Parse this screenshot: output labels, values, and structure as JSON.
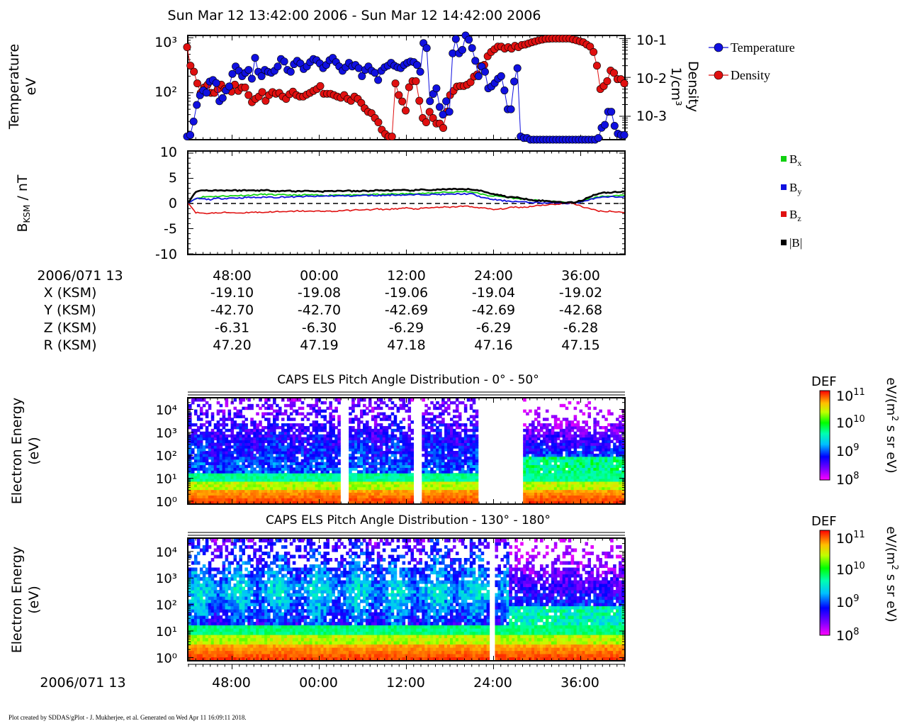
{
  "figure_title": "Sun Mar 12 13:42:00 2006 - Sun Mar 12 14:42:00 2006",
  "colors": {
    "temperature": "#1010e0",
    "density": "#e01010",
    "bx": "#10d010",
    "by": "#1010e0",
    "bz": "#e01010",
    "btotal": "#000000"
  },
  "footer_credit": "Plot created by SDDAS/gPlot - J. Mukherjee, et al.  Generated on Wed Apr 11 16:09:11 2018.",
  "ephemeris": {
    "date_label": "2006/071 13",
    "rows": [
      {
        "label": "X (KSM)",
        "values": [
          "-19.10",
          "-19.08",
          "-19.06",
          "-19.04",
          "-19.02"
        ]
      },
      {
        "label": "Y (KSM)",
        "values": [
          "-42.70",
          "-42.70",
          "-42.69",
          "-42.69",
          "-42.68"
        ]
      },
      {
        "label": "Z (KSM)",
        "values": [
          "-6.31",
          "-6.30",
          "-6.29",
          "-6.29",
          "-6.28"
        ]
      },
      {
        "label": "R (KSM)",
        "values": [
          "47.20",
          "47.19",
          "47.18",
          "47.16",
          "47.15"
        ]
      }
    ]
  },
  "bottom_date_label": "2006/071 13",
  "chart_data": [
    {
      "type": "line",
      "id": "plasma",
      "ylabel": "Temperature\neV",
      "ylabel_right": "Density\n1/cm³",
      "y_scale": "log",
      "ylim": [
        14,
        1100
      ],
      "y_ticks": [
        "10³",
        "10²"
      ],
      "y_right_scale": "log",
      "y_right_lim": [
        0.00025,
        0.12
      ],
      "y_right_ticks": [
        "10-1",
        "10-2",
        "10-3"
      ],
      "x_minutes_after_13_42": [
        0,
        60
      ],
      "x_ticks": [
        "48:00",
        "00:00",
        "12:00",
        "24:00",
        "36:00"
      ],
      "legend_position": "right",
      "series": [
        {
          "name": "Temperature",
          "axis": "left",
          "values": [
            16,
            17,
            30,
            60,
            90,
            110,
            100,
            160,
            170,
            150,
            70,
            80,
            110,
            130,
            220,
            300,
            250,
            200,
            230,
            260,
            180,
            430,
            240,
            200,
            260,
            240,
            230,
            250,
            300,
            410,
            370,
            260,
            240,
            330,
            380,
            340,
            270,
            300,
            360,
            410,
            390,
            340,
            280,
            320,
            390,
            430,
            360,
            300,
            250,
            290,
            350,
            300,
            320,
            280,
            200,
            260,
            300,
            250,
            230,
            170,
            250,
            290,
            310,
            350,
            310,
            290,
            280,
            320,
            350,
            370,
            360,
            320,
            240,
            800,
            650,
            70,
            95,
            120,
            55,
            40,
            70,
            45,
            520,
            950,
            520,
            600,
            1100,
            920,
            650,
            380,
            200,
            300,
            240,
            120,
            130,
            150,
            180,
            200,
            110,
            50,
            50,
            160,
            280,
            16,
            15,
            15,
            14,
            14,
            14,
            13,
            13,
            13,
            13,
            13,
            13,
            13,
            13,
            13,
            13,
            13,
            13,
            13,
            13,
            13,
            13,
            13,
            14,
            15,
            23,
            26,
            45,
            45,
            25,
            18,
            17,
            17
          ]
        },
        {
          "name": "Density",
          "axis": "right",
          "values": [
            0.06,
            0.02,
            0.014,
            0.007,
            0.004,
            0.0055,
            0.0065,
            0.004,
            0.004,
            0.005,
            0.0065,
            0.005,
            0.0048,
            0.0043,
            0.0065,
            0.0045,
            0.0055,
            0.0055,
            0.0035,
            0.0023,
            0.0028,
            0.0032,
            0.0042,
            0.0025,
            0.0035,
            0.0042,
            0.0038,
            0.004,
            0.0032,
            0.0028,
            0.0037,
            0.0043,
            0.0035,
            0.0032,
            0.0032,
            0.0036,
            0.004,
            0.0045,
            0.005,
            0.006,
            0.0038,
            0.0038,
            0.0038,
            0.0035,
            0.0032,
            0.003,
            0.0035,
            0.0028,
            0.0025,
            0.0032,
            0.0028,
            0.0022,
            0.0016,
            0.0013,
            0.0012,
            0.0009,
            0.0007,
            0.00045,
            0.00035,
            0.0003,
            0.0003,
            0.007,
            0.0035,
            0.0024,
            0.0014,
            0.0056,
            0.008,
            0.008,
            0.0025,
            0.0009,
            0.0007,
            0.0013,
            0.0009,
            0.00065,
            0.00065,
            0.0005,
            0.0013,
            0.0035,
            0.0045,
            0.0058,
            0.006,
            0.006,
            0.0065,
            0.0075,
            0.0105,
            0.012,
            0.0195,
            0.021,
            0.035,
            0.045,
            0.053,
            0.062,
            0.062,
            0.055,
            0.06,
            0.055,
            0.065,
            0.06,
            0.068,
            0.07,
            0.075,
            0.08,
            0.085,
            0.09,
            0.094,
            0.098,
            0.099,
            0.1,
            0.1,
            0.1,
            0.1,
            0.1,
            0.1,
            0.095,
            0.09,
            0.085,
            0.08,
            0.07,
            0.062,
            0.045,
            0.02,
            0.005,
            0.006,
            0.008,
            0.015,
            0.013,
            0.009,
            0.009,
            0.007
          ]
        }
      ]
    },
    {
      "type": "line",
      "id": "magnetic-field",
      "ylabel": "BKSM / nT",
      "ylim": [
        -10,
        10
      ],
      "y_ticks": [
        "10",
        "5",
        "0",
        "-5",
        "-10"
      ],
      "zero_line": "dashed",
      "x_minutes_after_13_42": [
        0,
        60
      ],
      "legend_position": "right",
      "series": [
        {
          "name": "Bx",
          "values": [
            0.1,
            1.0,
            1.3,
            1.4,
            1.4,
            1.5,
            1.5,
            1.6,
            1.6,
            1.7,
            1.8,
            1.8,
            1.7,
            1.7,
            1.7,
            1.6,
            1.7,
            1.7,
            1.6,
            1.6,
            1.7,
            1.7,
            1.7,
            1.6,
            1.7,
            1.8,
            1.8,
            1.8,
            1.9,
            1.9,
            1.9,
            2.0,
            2.0,
            2.0,
            2.1,
            2.3,
            2.2,
            2.3,
            2.4,
            2.3,
            2.0,
            1.6,
            1.5,
            1.4,
            1.2,
            1.0,
            0.9,
            0.7,
            0.6,
            0.5,
            0.4,
            0.3,
            0.2,
            0.2,
            0.3,
            0.8,
            1.2,
            1.4,
            1.5,
            1.5,
            1.6
          ]
        },
        {
          "name": "By",
          "values": [
            0.1,
            1.0,
            0.9,
            0.8,
            1.0,
            1.0,
            1.1,
            1.1,
            1.2,
            1.2,
            1.2,
            1.3,
            1.2,
            1.3,
            1.3,
            1.3,
            1.4,
            1.4,
            1.4,
            1.5,
            1.5,
            1.5,
            1.5,
            1.5,
            1.6,
            1.6,
            1.6,
            1.6,
            1.7,
            1.7,
            1.7,
            1.7,
            1.8,
            1.8,
            1.8,
            1.8,
            1.8,
            1.9,
            1.9,
            1.9,
            1.4,
            1.0,
            0.8,
            0.6,
            0.5,
            0.4,
            0.3,
            0.2,
            0.2,
            0.1,
            0.1,
            0.1,
            0.0,
            0.1,
            0.2,
            0.7,
            1.0,
            1.2,
            1.3,
            1.3,
            1.4
          ]
        },
        {
          "name": "Bz",
          "values": [
            0.0,
            -1.8,
            -2.0,
            -1.9,
            -1.9,
            -1.8,
            -1.8,
            -1.9,
            -1.8,
            -1.7,
            -1.8,
            -1.7,
            -1.6,
            -1.7,
            -1.6,
            -1.5,
            -1.5,
            -1.6,
            -1.5,
            -1.5,
            -1.6,
            -1.4,
            -1.4,
            -1.3,
            -1.2,
            -1.3,
            -1.1,
            -1.2,
            -1.1,
            -1.0,
            -0.9,
            -1.1,
            -1.0,
            -0.9,
            -0.8,
            -0.7,
            -0.8,
            -0.6,
            -0.5,
            -0.7,
            -0.8,
            -1.0,
            -1.2,
            -1.1,
            -0.9,
            -0.7,
            -0.8,
            -0.6,
            -0.4,
            -0.3,
            -0.2,
            -0.1,
            0.1,
            0.0,
            -0.5,
            -1.0,
            -1.3,
            -1.6,
            -1.5,
            -1.7,
            -1.8
          ]
        },
        {
          "name": "|B|",
          "values": [
            0.2,
            2.4,
            2.6,
            2.6,
            2.6,
            2.6,
            2.6,
            2.6,
            2.6,
            2.6,
            2.6,
            2.6,
            2.5,
            2.5,
            2.5,
            2.4,
            2.5,
            2.5,
            2.4,
            2.4,
            2.5,
            2.5,
            2.5,
            2.4,
            2.5,
            2.5,
            2.6,
            2.6,
            2.6,
            2.6,
            2.6,
            2.6,
            2.7,
            2.7,
            2.7,
            2.8,
            2.8,
            2.8,
            2.8,
            2.8,
            2.6,
            2.2,
            1.9,
            1.6,
            1.3,
            1.2,
            1.0,
            0.8,
            0.6,
            0.5,
            0.4,
            0.3,
            0.2,
            0.2,
            0.5,
            1.2,
            1.8,
            2.1,
            2.2,
            2.3,
            2.4
          ]
        }
      ]
    },
    {
      "type": "heatmap",
      "id": "els-pad-0-50",
      "title": "CAPS ELS Pitch Angle Distribution - 0° - 50°",
      "ylabel": "Electron Energy\n(eV)",
      "y_scale": "log",
      "ylim": [
        0.8,
        30000
      ],
      "y_ticks": [
        "10⁴",
        "10³",
        "10²",
        "10¹",
        "10⁰"
      ],
      "x_minutes_after_13_42": [
        0,
        60
      ],
      "data_gaps_minutes": [
        [
          21,
          22
        ],
        [
          31,
          32
        ],
        [
          40,
          46
        ]
      ],
      "colorbar": {
        "title": "DEF",
        "unit": "eV/(m² s sr eV)",
        "ticks": [
          "10¹¹",
          "10¹⁰",
          "10⁹",
          "10⁸"
        ],
        "range_log10": [
          8,
          11
        ]
      }
    },
    {
      "type": "heatmap",
      "id": "els-pad-130-180",
      "title": "CAPS ELS Pitch Angle Distribution - 130° - 180°",
      "ylabel": "Electron Energy\n(eV)",
      "y_scale": "log",
      "ylim": [
        0.8,
        30000
      ],
      "y_ticks": [
        "10⁴",
        "10³",
        "10²",
        "10¹",
        "10⁰"
      ],
      "x_minutes_after_13_42": [
        0,
        60
      ],
      "x_ticks": [
        "48:00",
        "00:00",
        "12:00",
        "24:00",
        "36:00"
      ],
      "data_gaps_minutes": [
        [
          41.5,
          42.0
        ]
      ],
      "colorbar": {
        "title": "DEF",
        "unit": "eV/(m² s sr eV)",
        "ticks": [
          "10¹¹",
          "10¹⁰",
          "10⁹",
          "10⁸"
        ],
        "range_log10": [
          8,
          11
        ]
      }
    }
  ]
}
